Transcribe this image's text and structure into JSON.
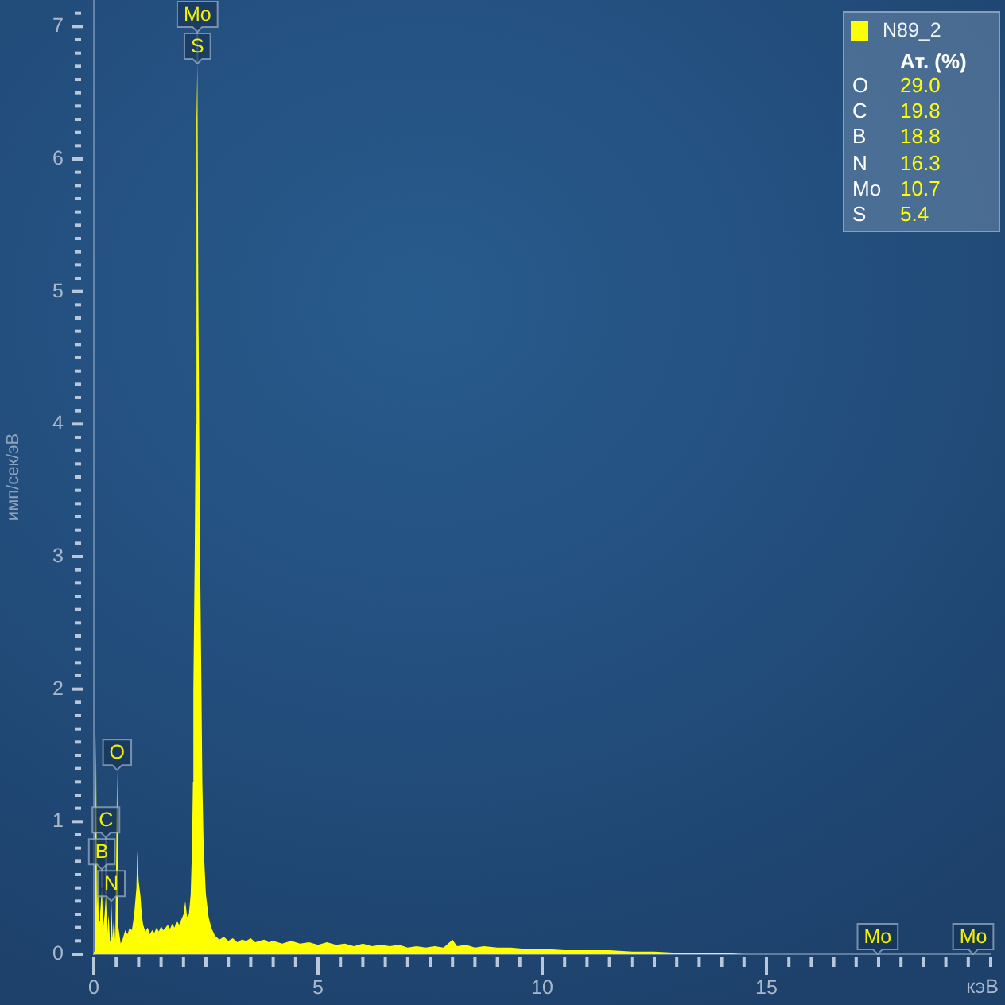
{
  "chart_data": [
    {
      "type": "area",
      "xlabel": "кэВ",
      "ylabel": "имп/сек/эВ",
      "legend": "top right",
      "xlim": [
        0,
        20
      ],
      "ylim": [
        0,
        7.2
      ],
      "xticks": [
        0,
        {
          "value": 0.5,
          "label": null
        },
        {
          "value": 1,
          "label": null
        },
        {
          "value": 1.5,
          "label": null
        },
        {
          "value": 2,
          "label": null
        },
        {
          "value": 2.5,
          "label": null
        },
        {
          "value": 3,
          "label": null
        },
        {
          "value": 3.5,
          "label": null
        },
        {
          "value": 4,
          "label": null
        },
        {
          "value": 4.5,
          "label": null
        },
        5,
        {
          "value": 5.5,
          "label": null
        },
        {
          "value": 6,
          "label": null
        },
        {
          "value": 6.5,
          "label": null
        },
        {
          "value": 7,
          "label": null
        },
        {
          "value": 7.5,
          "label": null
        },
        {
          "value": 8,
          "label": null
        },
        {
          "value": 8.5,
          "label": null
        },
        {
          "value": 9,
          "label": null
        },
        {
          "value": 9.5,
          "label": null
        },
        10,
        {
          "value": 10.5,
          "label": null
        },
        {
          "value": 11,
          "label": null
        },
        {
          "value": 11.5,
          "label": null
        },
        {
          "value": 12,
          "label": null
        },
        {
          "value": 12.5,
          "label": null
        },
        {
          "value": 13,
          "label": null
        },
        {
          "value": 13.5,
          "label": null
        },
        {
          "value": 14,
          "label": null
        },
        {
          "value": 14.5,
          "label": null
        },
        15,
        {
          "value": 15.5,
          "label": null
        },
        {
          "value": 16,
          "label": null
        },
        {
          "value": 16.5,
          "label": null
        },
        {
          "value": 17,
          "label": null
        },
        {
          "value": 17.5,
          "label": null
        },
        {
          "value": 18,
          "label": null
        },
        {
          "value": 18.5,
          "label": null
        },
        {
          "value": 19,
          "label": null
        },
        {
          "value": 19.5,
          "label": null
        },
        {
          "value": 20,
          "label": null
        }
      ],
      "yticks": [
        0,
        {
          "value": 0.1,
          "label": null
        },
        {
          "value": 0.2,
          "label": null
        },
        {
          "value": 0.3,
          "label": null
        },
        {
          "value": 0.4,
          "label": null
        },
        {
          "value": 0.5,
          "label": null
        },
        {
          "value": 0.6,
          "label": null
        },
        {
          "value": 0.7,
          "label": null
        },
        {
          "value": 0.8,
          "label": null
        },
        {
          "value": 0.9,
          "label": null
        },
        1,
        {
          "value": 1.1,
          "label": null
        },
        {
          "value": 1.2,
          "label": null
        },
        {
          "value": 1.3,
          "label": null
        },
        {
          "value": 1.4,
          "label": null
        },
        {
          "value": 1.5,
          "label": null
        },
        {
          "value": 1.6,
          "label": null
        },
        {
          "value": 1.7,
          "label": null
        },
        {
          "value": 1.8,
          "label": null
        },
        {
          "value": 1.9,
          "label": null
        },
        2,
        {
          "value": 2.1,
          "label": null
        },
        {
          "value": 2.2,
          "label": null
        },
        {
          "value": 2.3,
          "label": null
        },
        {
          "value": 2.4,
          "label": null
        },
        {
          "value": 2.5,
          "label": null
        },
        {
          "value": 2.6,
          "label": null
        },
        {
          "value": 2.7,
          "label": null
        },
        {
          "value": 2.8,
          "label": null
        },
        {
          "value": 2.9,
          "label": null
        },
        3,
        {
          "value": 3.1,
          "label": null
        },
        {
          "value": 3.2,
          "label": null
        },
        {
          "value": 3.3,
          "label": null
        },
        {
          "value": 3.4,
          "label": null
        },
        {
          "value": 3.5,
          "label": null
        },
        {
          "value": 3.6,
          "label": null
        },
        {
          "value": 3.7,
          "label": null
        },
        {
          "value": 3.8,
          "label": null
        },
        {
          "value": 3.9,
          "label": null
        },
        4,
        {
          "value": 4.1,
          "label": null
        },
        {
          "value": 4.2,
          "label": null
        },
        {
          "value": 4.3,
          "label": null
        },
        {
          "value": 4.4,
          "label": null
        },
        {
          "value": 4.5,
          "label": null
        },
        {
          "value": 4.6,
          "label": null
        },
        {
          "value": 4.7,
          "label": null
        },
        {
          "value": 4.8,
          "label": null
        },
        {
          "value": 4.9,
          "label": null
        },
        5,
        {
          "value": 5.1,
          "label": null
        },
        {
          "value": 5.2,
          "label": null
        },
        {
          "value": 5.3,
          "label": null
        },
        {
          "value": 5.4,
          "label": null
        },
        {
          "value": 5.5,
          "label": null
        },
        {
          "value": 5.6,
          "label": null
        },
        {
          "value": 5.7,
          "label": null
        },
        {
          "value": 5.8,
          "label": null
        },
        {
          "value": 5.9,
          "label": null
        },
        6,
        {
          "value": 6.1,
          "label": null
        },
        {
          "value": 6.2,
          "label": null
        },
        {
          "value": 6.3,
          "label": null
        },
        {
          "value": 6.4,
          "label": null
        },
        {
          "value": 6.5,
          "label": null
        },
        {
          "value": 6.6,
          "label": null
        },
        {
          "value": 6.7,
          "label": null
        },
        {
          "value": 6.8,
          "label": null
        },
        {
          "value": 6.9,
          "label": null
        },
        7,
        {
          "value": 7.1,
          "label": null
        }
      ],
      "x": [
        0,
        0.02,
        0.05,
        0.07,
        0.09,
        0.11,
        0.14,
        0.18,
        0.21,
        0.24,
        0.27,
        0.3,
        0.33,
        0.36,
        0.39,
        0.42,
        0.45,
        0.48,
        0.52,
        0.55,
        0.6,
        0.65,
        0.7,
        0.75,
        0.8,
        0.85,
        0.9,
        0.95,
        0.97,
        1,
        1.04,
        1.07,
        1.1,
        1.15,
        1.2,
        1.25,
        1.3,
        1.35,
        1.4,
        1.45,
        1.5,
        1.55,
        1.6,
        1.65,
        1.7,
        1.75,
        1.8,
        1.85,
        1.9,
        1.95,
        2,
        2.04,
        2.08,
        2.12,
        2.16,
        2.19,
        2.21,
        2.22,
        2.25,
        2.27,
        2.28,
        2.3,
        2.31,
        2.32,
        2.34,
        2.35,
        2.37,
        2.4,
        2.42,
        2.45,
        2.5,
        2.56,
        2.62,
        2.7,
        2.8,
        2.9,
        3,
        3.1,
        3.2,
        3.3,
        3.4,
        3.5,
        3.6,
        3.7,
        3.8,
        3.9,
        4,
        4.2,
        4.4,
        4.6,
        4.8,
        5,
        5.2,
        5.4,
        5.6,
        5.8,
        6,
        6.2,
        6.4,
        6.6,
        6.8,
        7,
        7.2,
        7.4,
        7.6,
        7.8,
        8,
        8.1,
        8.3,
        8.5,
        8.7,
        9,
        9.3,
        9.6,
        10,
        10.5,
        11,
        11.5,
        12,
        12.5,
        13,
        13.5,
        14,
        14.5,
        15,
        17.48,
        19.61,
        20
      ],
      "series": [
        {
          "name": "N89_2",
          "color": "#ffff00",
          "values": [
            0.02,
            0.25,
            1.67,
            0.35,
            0.6,
            0.25,
            0.3,
            0.5,
            0.2,
            0.3,
            0.45,
            0.15,
            0.3,
            0.1,
            0.4,
            0.12,
            0.3,
            0.1,
            1.39,
            0.2,
            0.08,
            0.12,
            0.18,
            0.15,
            0.2,
            0.18,
            0.3,
            0.5,
            0.78,
            0.55,
            0.44,
            0.3,
            0.22,
            0.17,
            0.2,
            0.15,
            0.18,
            0.16,
            0.2,
            0.17,
            0.21,
            0.18,
            0.2,
            0.22,
            0.19,
            0.23,
            0.2,
            0.26,
            0.22,
            0.26,
            0.3,
            0.4,
            0.28,
            0.3,
            0.45,
            0.8,
            1.3,
            2.0,
            3.0,
            4.0,
            5.0,
            6.3,
            6.72,
            6.3,
            5.0,
            4.0,
            3.0,
            2.0,
            1.3,
            0.8,
            0.45,
            0.28,
            0.2,
            0.14,
            0.11,
            0.13,
            0.1,
            0.12,
            0.09,
            0.11,
            0.1,
            0.12,
            0.09,
            0.1,
            0.11,
            0.09,
            0.1,
            0.08,
            0.1,
            0.08,
            0.09,
            0.07,
            0.09,
            0.07,
            0.08,
            0.06,
            0.08,
            0.06,
            0.07,
            0.06,
            0.07,
            0.05,
            0.06,
            0.05,
            0.06,
            0.05,
            0.11,
            0.06,
            0.07,
            0.05,
            0.06,
            0.05,
            0.05,
            0.04,
            0.04,
            0.03,
            0.03,
            0.03,
            0.02,
            0.02,
            0.01,
            0.01,
            0.01,
            0,
            0,
            0,
            0,
            0
          ]
        }
      ],
      "annotations": [
        {
          "text": "Mo",
          "x": 2.31,
          "y": 6.72
        },
        {
          "text": "S",
          "x": 2.31,
          "y": 6.72
        },
        {
          "text": "O",
          "x": 0.52,
          "y": 1.39
        },
        {
          "text": "C",
          "x": 0.27,
          "y": 0.45
        },
        {
          "text": "B",
          "x": 0.18,
          "y": 0.5
        },
        {
          "text": "N",
          "x": 0.39,
          "y": 0.4
        },
        {
          "text": "Mo",
          "x": 17.48,
          "y": 0
        },
        {
          "text": "Mo",
          "x": 19.61,
          "y": 0
        }
      ]
    },
    {
      "type": "other",
      "title": "Ат. (%)",
      "categories": [
        "O",
        "C",
        "B",
        "N",
        "Mo",
        "S"
      ],
      "values": [
        29.0,
        19.8,
        18.8,
        16.3,
        10.7,
        5.4
      ],
      "value_labels": [
        "29.0",
        "19.8",
        "18.8",
        "16.3",
        "10.7",
        "5.4"
      ]
    }
  ]
}
